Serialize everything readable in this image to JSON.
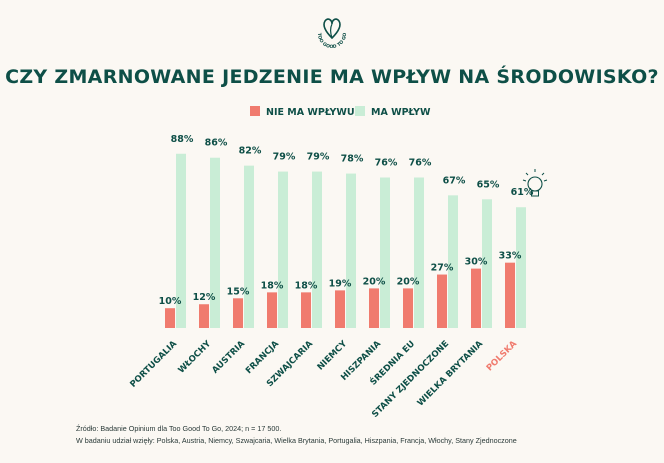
{
  "brand": {
    "logo_text": "TOO GOOD TO GO"
  },
  "chart_data": {
    "type": "bar",
    "title": "CZY ZMARNOWANE JEDZENIE MA WPŁYW NA ŚRODOWISKO?",
    "categories": [
      "PORTUGALIA",
      "WŁOCHY",
      "AUSTRIA",
      "FRANCJA",
      "SZWAJCARIA",
      "NIEMCY",
      "HISZPANIA",
      "ŚREDNIA EU",
      "STANY ZJEDNOCZONE",
      "WIELKA BRYTANIA",
      "POLSKA"
    ],
    "highlight_category": "POLSKA",
    "series": [
      {
        "name": "NIE MA WPŁYWU",
        "values": [
          10,
          12,
          15,
          18,
          18,
          19,
          20,
          20,
          27,
          30,
          33
        ],
        "labels": [
          "10%",
          "12%",
          "15%",
          "18%",
          "18%",
          "19%",
          "20%",
          "20%",
          "27%",
          "30%",
          "33%"
        ],
        "color": "#f07b6e"
      },
      {
        "name": "MA WPŁYW",
        "values": [
          88,
          86,
          82,
          79,
          79,
          78,
          76,
          76,
          67,
          65,
          61
        ],
        "labels": [
          "88%",
          "86%",
          "82%",
          "79%",
          "79%",
          "78%",
          "76%",
          "76%",
          "67%",
          "65%",
          "61%"
        ],
        "color": "#c9edd6"
      }
    ],
    "ylim": [
      0,
      100
    ],
    "xlabel": "",
    "ylabel": ""
  },
  "colors": {
    "text": "#0e4f47",
    "highlight": "#f07b6e"
  },
  "footer": {
    "source": "Źródło: Badanie Opinium dla Too Good To Go, 2024; n = 17 500.",
    "countries": "W badaniu udział wzięły: Polska, Austria, Niemcy, Szwajcaria, Wielka Brytania, Portugalia, Hiszpania, Francja, Włochy, Stany Zjednoczone"
  }
}
